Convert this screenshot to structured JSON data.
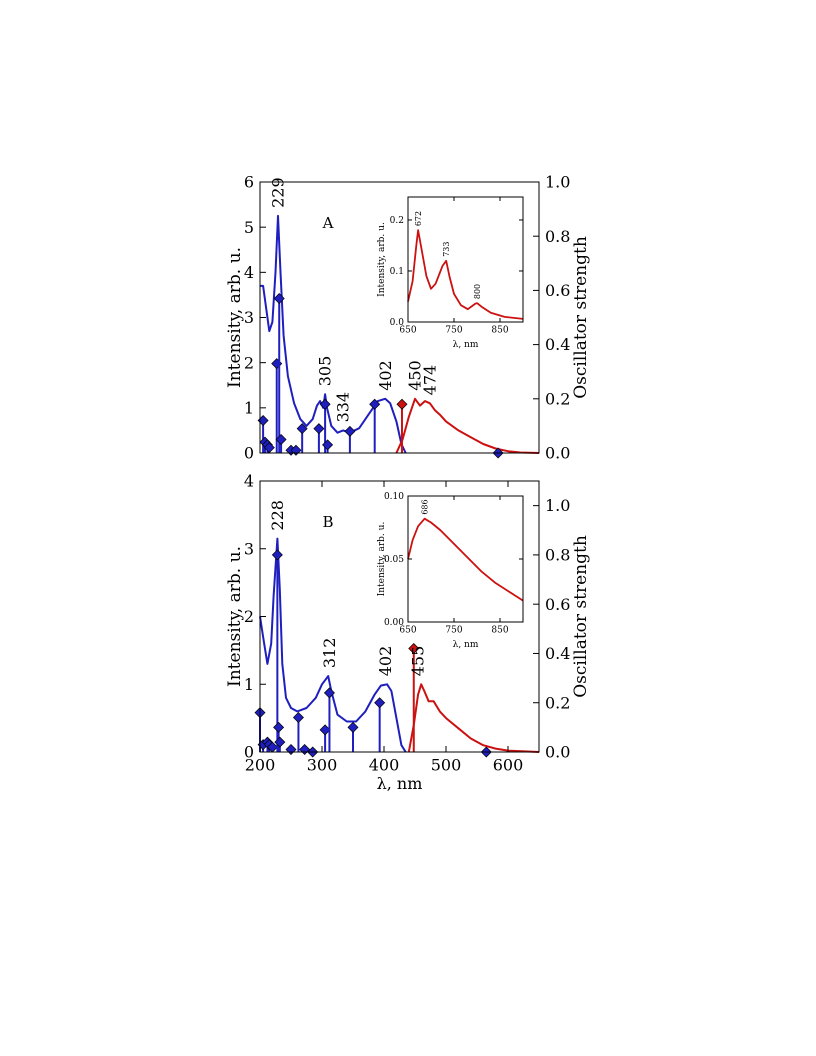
{
  "chart_data": [
    {
      "type": "line",
      "label": "A",
      "ylabel": "Intensity, arb. u.",
      "y2label": "Oscillator strength",
      "xlim": [
        200,
        650
      ],
      "ylim": [
        0,
        6
      ],
      "yticks": [
        0,
        1,
        2,
        3,
        4,
        5,
        6
      ],
      "y2lim": [
        0,
        1.0
      ],
      "y2ticks": [
        {
          "value": 0,
          "label": "0.0"
        },
        {
          "value": 0.2,
          "label": "0.2"
        },
        {
          "value": 0.4,
          "label": "0.4"
        },
        {
          "value": 0.6,
          "label": "0.6"
        },
        {
          "value": 0.8,
          "label": "0.8"
        },
        {
          "value": 1.0,
          "label": "1.0"
        }
      ],
      "series": [
        {
          "color": "#1f1fbf",
          "x": [
            200,
            205,
            210,
            215,
            220,
            225,
            229,
            233,
            238,
            245,
            255,
            265,
            275,
            285,
            292,
            297,
            302,
            305,
            308,
            315,
            325,
            334,
            345,
            360,
            375,
            390,
            402,
            410,
            420,
            428,
            435
          ],
          "values": [
            3.7,
            3.7,
            3.2,
            2.7,
            2.9,
            4.0,
            5.25,
            4.0,
            2.6,
            1.7,
            1.1,
            0.75,
            0.6,
            0.75,
            1.05,
            1.15,
            1.0,
            1.3,
            1.0,
            0.6,
            0.45,
            0.5,
            0.45,
            0.55,
            0.85,
            1.15,
            1.2,
            1.1,
            0.7,
            0.2,
            0.0
          ]
        },
        {
          "color": "#cc1111",
          "x": [
            420,
            430,
            440,
            450,
            458,
            466,
            474,
            482,
            490,
            500,
            520,
            540,
            560,
            580,
            600,
            620,
            650
          ],
          "values": [
            0,
            0.3,
            0.8,
            1.2,
            1.05,
            1.15,
            1.1,
            0.95,
            0.85,
            0.7,
            0.5,
            0.35,
            0.2,
            0.1,
            0.04,
            0.01,
            0
          ]
        },
        {
          "kind": "stem",
          "axis": "y2",
          "color": "#1f1fbf",
          "x": [
            205,
            208,
            212,
            215,
            227,
            231,
            234,
            250,
            258,
            268,
            295,
            305,
            309,
            345,
            385,
            584
          ],
          "values": [
            0.12,
            0.04,
            0.03,
            0.02,
            0.33,
            0.57,
            0.05,
            0.01,
            0.01,
            0.09,
            0.09,
            0.18,
            0.03,
            0.08,
            0.18,
            0.0
          ]
        },
        {
          "kind": "stem",
          "axis": "y2",
          "color": "#cc1111",
          "x": [
            429
          ],
          "values": [
            0.18
          ]
        }
      ],
      "annotations": [
        229,
        305,
        334,
        402,
        450,
        474
      ]
    },
    {
      "type": "line",
      "ylabel": "Intensity, arb. u.",
      "xlabel": "λ, nm",
      "xlim": [
        650,
        900
      ],
      "xticks": [
        650,
        750,
        850
      ],
      "ylim": [
        0,
        0.245
      ],
      "yticks": [
        {
          "value": 0,
          "label": "0.0"
        },
        {
          "value": 0.1,
          "label": "0.1"
        },
        {
          "value": 0.2,
          "label": "0.2"
        }
      ],
      "series": [
        {
          "color": "#cc1111",
          "x": [
            650,
            660,
            668,
            672,
            678,
            690,
            700,
            710,
            725,
            733,
            740,
            750,
            765,
            780,
            795,
            800,
            810,
            830,
            860,
            900
          ],
          "values": [
            0.04,
            0.08,
            0.15,
            0.18,
            0.15,
            0.09,
            0.065,
            0.075,
            0.11,
            0.12,
            0.09,
            0.055,
            0.033,
            0.025,
            0.035,
            0.037,
            0.03,
            0.018,
            0.01,
            0.006
          ]
        }
      ],
      "annotations": [
        672,
        733,
        800
      ]
    },
    {
      "type": "line",
      "label": "B",
      "ylabel": "Intensity, arb. u.",
      "y2label": "Oscillator strength",
      "xlabel": "λ, nm",
      "xlim": [
        200,
        650
      ],
      "xticks": [
        200,
        300,
        400,
        500,
        600
      ],
      "ylim": [
        0,
        4
      ],
      "yticks": [
        0,
        1,
        2,
        3,
        4
      ],
      "y2lim": [
        0,
        1.1
      ],
      "y2ticks": [
        {
          "value": 0,
          "label": "0.0"
        },
        {
          "value": 0.2,
          "label": "0.2"
        },
        {
          "value": 0.4,
          "label": "0.4"
        },
        {
          "value": 0.6,
          "label": "0.6"
        },
        {
          "value": 0.8,
          "label": "0.8"
        },
        {
          "value": 1.0,
          "label": "1.0"
        }
      ],
      "series": [
        {
          "color": "#1f1fbf",
          "x": [
            200,
            205,
            212,
            218,
            222,
            228,
            232,
            236,
            242,
            250,
            260,
            275,
            290,
            300,
            310,
            315,
            325,
            340,
            355,
            370,
            385,
            395,
            405,
            412,
            420,
            428,
            435
          ],
          "values": [
            2.0,
            1.7,
            1.3,
            1.6,
            2.3,
            3.15,
            2.4,
            1.3,
            0.8,
            0.65,
            0.6,
            0.65,
            0.8,
            1.0,
            1.12,
            0.9,
            0.55,
            0.45,
            0.45,
            0.6,
            0.85,
            0.98,
            1.0,
            0.9,
            0.5,
            0.1,
            0
          ]
        },
        {
          "color": "#cc1111",
          "x": [
            440,
            448,
            455,
            460,
            465,
            472,
            480,
            490,
            500,
            520,
            540,
            560,
            580,
            600,
            650
          ],
          "values": [
            0,
            0.4,
            0.85,
            1.0,
            0.9,
            0.75,
            0.75,
            0.6,
            0.5,
            0.35,
            0.2,
            0.1,
            0.05,
            0.02,
            0
          ]
        },
        {
          "kind": "stem",
          "axis": "y2",
          "color": "#1f1fbf",
          "x": [
            200,
            205,
            212,
            215,
            220,
            228,
            230,
            232,
            250,
            262,
            272,
            285,
            305,
            312,
            350,
            393,
            565
          ],
          "values": [
            0.16,
            0.03,
            0.04,
            0.03,
            0.02,
            0.8,
            0.1,
            0.04,
            0.01,
            0.14,
            0.01,
            0.0,
            0.09,
            0.24,
            0.1,
            0.2,
            0.0
          ]
        },
        {
          "kind": "stem",
          "axis": "y2",
          "color": "#cc1111",
          "x": [
            448
          ],
          "values": [
            0.42
          ]
        }
      ],
      "annotations": [
        228,
        312,
        402,
        455
      ]
    },
    {
      "type": "line",
      "ylabel": "Intensity, arb. u.",
      "xlabel": "λ, nm",
      "xlim": [
        650,
        900
      ],
      "xticks": [
        650,
        750,
        850
      ],
      "ylim": [
        0,
        0.1
      ],
      "yticks": [
        {
          "value": 0,
          "label": "0.00"
        },
        {
          "value": 0.05,
          "label": "0.05"
        },
        {
          "value": 0.1,
          "label": "0.10"
        }
      ],
      "series": [
        {
          "color": "#cc1111",
          "x": [
            650,
            660,
            672,
            686,
            700,
            720,
            750,
            780,
            810,
            840,
            870,
            900
          ],
          "values": [
            0.05,
            0.065,
            0.076,
            0.082,
            0.079,
            0.073,
            0.062,
            0.051,
            0.04,
            0.031,
            0.024,
            0.017
          ]
        }
      ],
      "annotations": [
        686
      ]
    }
  ]
}
